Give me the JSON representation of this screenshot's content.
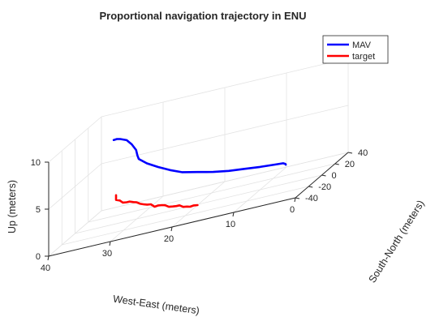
{
  "chart_data": {
    "type": "line3d",
    "title": "Proportional navigation trajectory in ENU",
    "xlabel": "West-East (meters)",
    "ylabel": "South-North (meters)",
    "zlabel": "Up (meters)",
    "xlim": [
      0,
      40
    ],
    "ylim": [
      -40,
      40
    ],
    "zlim": [
      0,
      10
    ],
    "xticks": [
      "0",
      "10",
      "20",
      "30",
      "40"
    ],
    "yticks": [
      "-40",
      "-20",
      "0",
      "20",
      "40"
    ],
    "zticks": [
      "0",
      "5",
      "10"
    ],
    "grid": true,
    "legend_position": "top-right",
    "series": [
      {
        "name": "MAV",
        "color": "#0000ff",
        "points": [
          [
            30,
            -35,
            10.5
          ],
          [
            30,
            -30,
            10.3
          ],
          [
            30,
            -25,
            10.0
          ],
          [
            29.5,
            -20,
            9.5
          ],
          [
            29,
            -17,
            8.8
          ],
          [
            28.5,
            -15,
            8.0
          ],
          [
            28.5,
            -13,
            7.3
          ],
          [
            28.5,
            -11,
            6.8
          ],
          [
            27.5,
            -8,
            6.0
          ],
          [
            26,
            -5,
            5.2
          ],
          [
            24.5,
            -1,
            4.4
          ],
          [
            23,
            3,
            3.7
          ],
          [
            21,
            8,
            3.1
          ],
          [
            19,
            13,
            2.5
          ],
          [
            17,
            18,
            2.0
          ],
          [
            15,
            23,
            1.6
          ],
          [
            13,
            28,
            1.2
          ],
          [
            11,
            32,
            0.9
          ],
          [
            10,
            35,
            0.7
          ],
          [
            9.8,
            36.5,
            0.5
          ],
          [
            9.8,
            37,
            0.4
          ]
        ]
      },
      {
        "name": "target",
        "color": "#ff0000",
        "points": [
          [
            31,
            -22,
            4.0
          ],
          [
            31,
            -22,
            3.5
          ],
          [
            30.5,
            -21,
            3.3
          ],
          [
            30,
            -21,
            3.0
          ],
          [
            29.5,
            -20,
            2.9
          ],
          [
            29,
            -20,
            2.9
          ],
          [
            28.5,
            -19,
            2.7
          ],
          [
            28,
            -19,
            2.6
          ],
          [
            27.5,
            -18,
            2.3
          ],
          [
            27,
            -17,
            2.1
          ],
          [
            26.5,
            -17,
            2.0
          ],
          [
            26,
            -16,
            1.9
          ],
          [
            25.5,
            -15,
            1.5
          ],
          [
            25,
            -14,
            1.5
          ],
          [
            24.5,
            -13,
            1.4
          ],
          [
            24,
            -13,
            1.3
          ],
          [
            23.5,
            -12,
            1.0
          ],
          [
            23,
            -11,
            0.9
          ],
          [
            22.5,
            -10,
            0.8
          ],
          [
            22,
            -10,
            0.8
          ],
          [
            21.5,
            -9,
            0.5
          ],
          [
            21,
            -8,
            0.4
          ],
          [
            20.5,
            -8,
            0.3
          ],
          [
            20,
            -7,
            0.3
          ],
          [
            19.5,
            -6,
            0.2
          ]
        ]
      }
    ]
  }
}
